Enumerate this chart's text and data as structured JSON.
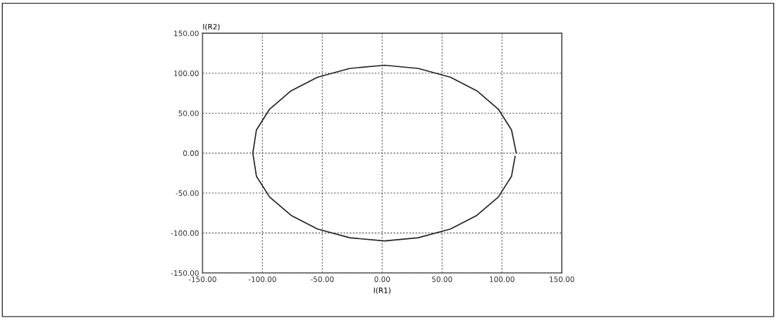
{
  "chart_data": {
    "type": "line",
    "xlabel": "I(R1)",
    "ylabel": "I(R2)",
    "series": [
      {
        "color": "#222222",
        "x": [
          112,
          108,
          97,
          79,
          57,
          30,
          2,
          -27,
          -54,
          -76,
          -94,
          -105,
          -108,
          -105,
          -94,
          -76,
          -54,
          -27,
          2,
          30,
          57,
          79,
          97,
          108,
          111
        ],
        "values": [
          0,
          29,
          55,
          78,
          95,
          106,
          110,
          106,
          95,
          78,
          55,
          29,
          0,
          -29,
          -55,
          -78,
          -95,
          -106,
          -110,
          -106,
          -95,
          -78,
          -55,
          -29,
          -4
        ]
      }
    ],
    "xlim": [
      -150,
      150
    ],
    "ylim": [
      -150,
      150
    ],
    "xticks": [
      {
        "value": -150,
        "label": "-150.00"
      },
      {
        "value": -100,
        "label": "-100.00"
      },
      {
        "value": -50,
        "label": "-50.00"
      },
      {
        "value": 0,
        "label": "0.00"
      },
      {
        "value": 50,
        "label": "50.00"
      },
      {
        "value": 100,
        "label": "100.00"
      },
      {
        "value": 150,
        "label": "150.00"
      }
    ],
    "yticks": [
      {
        "value": -150,
        "label": "-150.00"
      },
      {
        "value": -100,
        "label": "-100.00"
      },
      {
        "value": -50,
        "label": "-50.00"
      },
      {
        "value": 0,
        "label": "0.00"
      },
      {
        "value": 50,
        "label": "50.00"
      },
      {
        "value": 100,
        "label": "100.00"
      },
      {
        "value": 150,
        "label": "150.00"
      }
    ],
    "grid": true,
    "line_style": "solid"
  }
}
